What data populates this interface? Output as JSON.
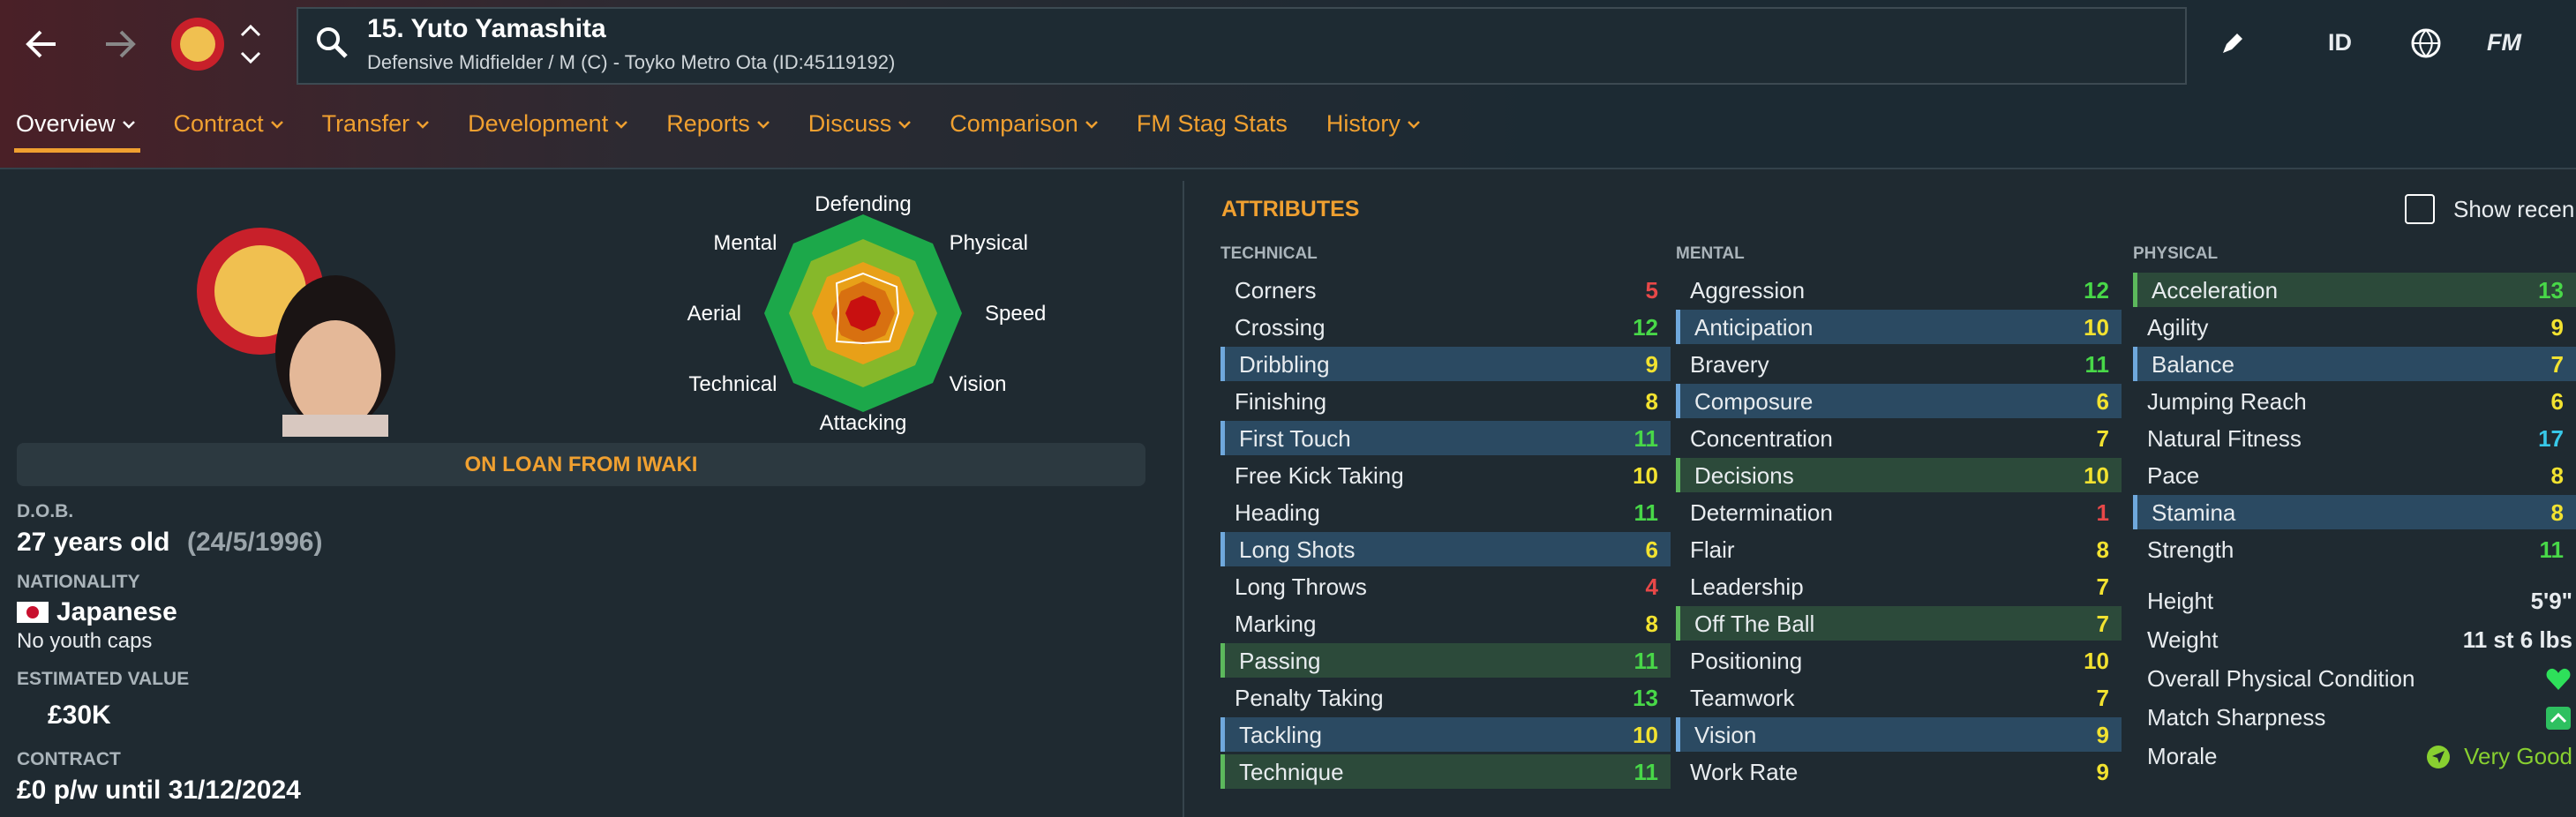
{
  "header": {
    "title": "15. Yuto Yamashita",
    "subtitle": "Defensive Midfielder / M (C) - Toyko Metro Ota (ID:45119192)",
    "buttons": [
      "ID",
      "FM"
    ]
  },
  "tabs": [
    {
      "label": "Overview",
      "menu": true
    },
    {
      "label": "Contract",
      "menu": true
    },
    {
      "label": "Transfer",
      "menu": true
    },
    {
      "label": "Development",
      "menu": true
    },
    {
      "label": "Reports",
      "menu": true
    },
    {
      "label": "Discuss",
      "menu": true
    },
    {
      "label": "Comparison",
      "menu": true
    },
    {
      "label": "FM Stag Stats",
      "menu": false
    },
    {
      "label": "History",
      "menu": true
    }
  ],
  "active_tab": 0,
  "radar": {
    "labels": [
      "Defending",
      "Physical",
      "Speed",
      "Vision",
      "Attacking",
      "Technical",
      "Aerial",
      "Mental"
    ]
  },
  "loan_banner": "ON LOAN FROM IWAKI",
  "profile": {
    "dob_label": "D.O.B.",
    "age": "27 years old",
    "dob": "(24/5/1996)",
    "nationality_label": "NATIONALITY",
    "nationality": "Japanese",
    "caps": "No youth caps",
    "value_label": "ESTIMATED VALUE",
    "value": "£30K",
    "contract_label": "CONTRACT",
    "contract": "£0 p/w until 31/12/2024"
  },
  "attributes": {
    "title": "ATTRIBUTES",
    "toggle": "Show recen",
    "groups": [
      {
        "name": "TECHNICAL",
        "rows": [
          {
            "name": "Corners",
            "value": 5
          },
          {
            "name": "Crossing",
            "value": 12
          },
          {
            "name": "Dribbling",
            "value": 9,
            "highlight": "key"
          },
          {
            "name": "Finishing",
            "value": 8
          },
          {
            "name": "First Touch",
            "value": 11,
            "highlight": "key"
          },
          {
            "name": "Free Kick Taking",
            "value": 10
          },
          {
            "name": "Heading",
            "value": 11
          },
          {
            "name": "Long Shots",
            "value": 6,
            "highlight": "key"
          },
          {
            "name": "Long Throws",
            "value": 4
          },
          {
            "name": "Marking",
            "value": 8
          },
          {
            "name": "Passing",
            "value": 11,
            "highlight": "preferred"
          },
          {
            "name": "Penalty Taking",
            "value": 13
          },
          {
            "name": "Tackling",
            "value": 10,
            "highlight": "key"
          },
          {
            "name": "Technique",
            "value": 11,
            "highlight": "preferred"
          }
        ]
      },
      {
        "name": "MENTAL",
        "rows": [
          {
            "name": "Aggression",
            "value": 12
          },
          {
            "name": "Anticipation",
            "value": 10,
            "highlight": "key"
          },
          {
            "name": "Bravery",
            "value": 11
          },
          {
            "name": "Composure",
            "value": 6,
            "highlight": "key"
          },
          {
            "name": "Concentration",
            "value": 7
          },
          {
            "name": "Decisions",
            "value": 10,
            "highlight": "preferred"
          },
          {
            "name": "Determination",
            "value": 1
          },
          {
            "name": "Flair",
            "value": 8
          },
          {
            "name": "Leadership",
            "value": 7
          },
          {
            "name": "Off The Ball",
            "value": 7,
            "highlight": "preferred"
          },
          {
            "name": "Positioning",
            "value": 10
          },
          {
            "name": "Teamwork",
            "value": 7
          },
          {
            "name": "Vision",
            "value": 9,
            "highlight": "key"
          },
          {
            "name": "Work Rate",
            "value": 9
          }
        ]
      },
      {
        "name": "PHYSICAL",
        "rows": [
          {
            "name": "Acceleration",
            "value": 13,
            "highlight": "preferred"
          },
          {
            "name": "Agility",
            "value": 9
          },
          {
            "name": "Balance",
            "value": 7,
            "highlight": "key"
          },
          {
            "name": "Jumping Reach",
            "value": 6
          },
          {
            "name": "Natural Fitness",
            "value": 17
          },
          {
            "name": "Pace",
            "value": 8
          },
          {
            "name": "Stamina",
            "value": 8,
            "highlight": "key"
          },
          {
            "name": "Strength",
            "value": 11
          }
        ]
      }
    ]
  },
  "physical_info": [
    {
      "label": "Height",
      "value": "5'9\""
    },
    {
      "label": "Weight",
      "value": "11 st 6 lbs"
    },
    {
      "label": "Overall Physical Condition"
    },
    {
      "label": "Match Sharpness"
    },
    {
      "label": "Morale",
      "value": "Very Good"
    }
  ]
}
